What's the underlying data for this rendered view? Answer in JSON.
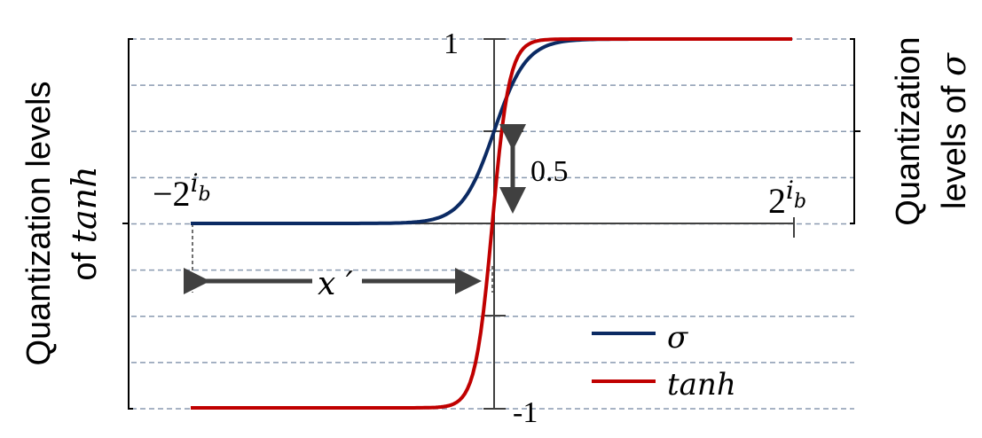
{
  "labels": {
    "left_axis_line1": "Quantization  levels",
    "left_axis_line2_prefix": "of ",
    "left_axis_line2_math": "tanh",
    "right_axis_line1": "Quantization",
    "right_axis_line2_prefix": "levels of ",
    "right_axis_line2_math": "σ",
    "y_top": "1",
    "y_bottom": "-1",
    "half": "0.5",
    "x_left_base": "−2",
    "x_right_base": "2",
    "exponent_i": "i",
    "exponent_b": "b",
    "x_prime": "x ′"
  },
  "legend": [
    {
      "name": "σ",
      "color": "#0b2a63"
    },
    {
      "name": "tanh",
      "color": "#c00000"
    }
  ],
  "colors": {
    "grid": "#8a9ab0",
    "axis": "#404040",
    "sigma": "#0b2a63",
    "tanh": "#c00000"
  }
}
